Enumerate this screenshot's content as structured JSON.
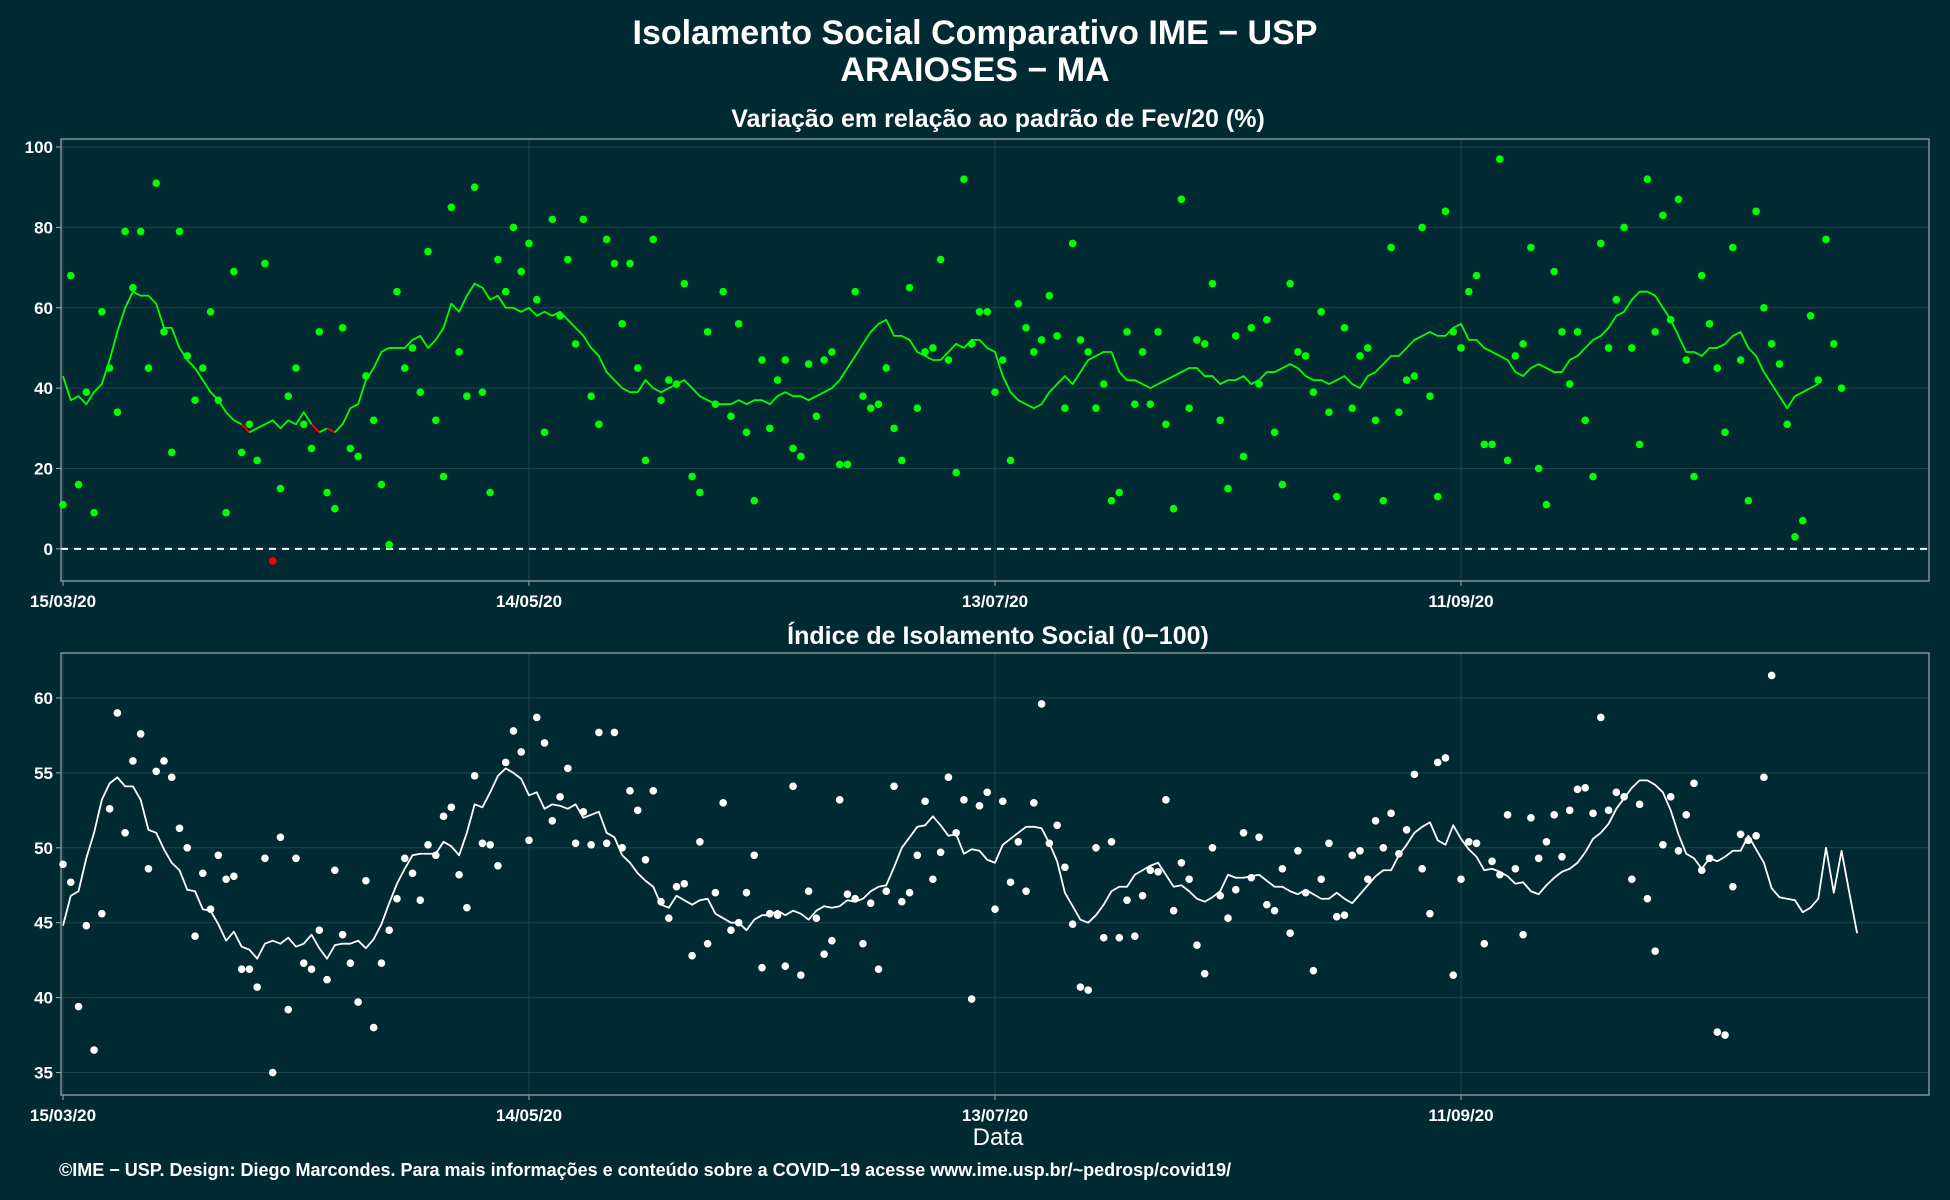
{
  "title_line1": "Isolamento Social Comparativo IME − USP",
  "title_line2": "ARAIOSES − MA",
  "caption": "©IME − USP. Design: Diego Marcondes. Para mais informações e conteúdo sobre a COVID−19 acesse www.ime.usp.br/~pedrosp/covid19/",
  "colors": {
    "background": "#022a33",
    "positive": "#00ff00",
    "negative": "#ff0000",
    "index": "#ffffff",
    "axis": "#a0aaaa",
    "grid": "#1c434b"
  },
  "chart_data": [
    {
      "type": "scatter",
      "title": "Variação em relação ao padrão de Fev/20 (%)",
      "xlabel": "",
      "ylabel": "",
      "x_start": "15/03/20",
      "n_days": 241,
      "x_ticks": [
        "15/03/20",
        "14/05/20",
        "13/07/20",
        "11/09/20"
      ],
      "x_tick_days": [
        0,
        60,
        120,
        180
      ],
      "ylim": [
        -8,
        102
      ],
      "y_ticks": [
        0,
        20,
        40,
        60,
        80,
        100
      ],
      "reference_line": 0,
      "grid": true,
      "series": [
        {
          "role": "daily points",
          "values": [
            11,
            68,
            16,
            39,
            9,
            59,
            45,
            34,
            79,
            65,
            79,
            45,
            91,
            54,
            24,
            79,
            48,
            37,
            45,
            59,
            37,
            9,
            69,
            24,
            31,
            22,
            71,
            -3,
            15,
            38,
            45,
            31,
            25,
            54,
            14,
            10,
            55,
            25,
            23,
            43,
            32,
            16,
            1,
            64,
            45,
            50,
            39,
            74,
            32,
            18,
            85,
            49,
            38,
            90,
            39,
            14,
            72,
            64,
            80,
            69,
            76,
            62,
            29,
            82,
            58,
            72,
            51,
            82,
            38,
            31,
            77,
            71,
            56,
            71,
            45,
            22,
            77,
            37,
            42,
            41,
            66,
            18,
            14,
            54,
            36,
            64,
            33,
            56,
            29,
            12,
            47,
            30,
            42,
            47,
            25,
            23,
            46,
            33,
            47,
            49,
            21,
            21,
            64,
            38,
            35,
            36,
            45,
            30,
            22,
            65,
            35,
            49,
            50,
            72,
            47,
            19,
            92,
            51,
            59,
            59,
            39,
            47,
            22,
            61,
            55,
            49,
            52,
            63,
            53,
            35,
            76,
            52,
            49,
            35,
            41,
            12,
            14,
            54,
            36,
            49,
            36,
            54,
            31,
            10,
            87,
            35,
            52,
            51,
            66,
            32,
            15,
            53,
            23,
            55,
            41,
            57,
            29,
            16,
            66,
            49,
            48,
            39,
            59,
            34,
            13,
            55,
            35,
            48,
            50,
            32,
            12,
            75,
            34,
            42,
            43,
            80,
            38,
            13,
            84,
            54,
            50,
            64,
            68,
            26,
            26,
            97,
            22,
            48,
            51,
            75,
            20,
            11,
            69,
            54,
            41,
            54,
            32,
            18,
            76,
            50,
            62,
            80,
            50,
            26,
            92,
            54,
            83,
            57,
            87,
            47,
            18,
            68,
            56,
            45,
            29,
            75,
            47,
            12,
            84,
            60,
            51,
            46,
            31,
            3,
            7,
            58,
            42,
            77,
            51,
            40
          ],
          "y_error_days": [
            27
          ]
        },
        {
          "role": "moving average",
          "values": [
            43,
            37,
            38,
            36,
            39,
            41,
            47,
            54,
            60,
            64,
            63,
            63,
            61,
            55,
            55,
            50,
            47,
            45,
            42,
            39,
            37,
            34,
            32,
            31,
            29,
            30,
            31,
            32,
            30,
            32,
            31,
            34,
            31,
            29,
            30,
            29,
            31,
            35,
            36,
            42,
            45,
            49,
            50,
            50,
            50,
            52,
            53,
            50,
            52,
            55,
            61,
            59,
            63,
            66,
            65,
            62,
            63,
            60,
            60,
            59,
            60,
            58,
            59,
            58,
            59,
            57,
            55,
            53,
            50,
            48,
            44,
            42,
            40,
            39,
            39,
            42,
            40,
            39,
            40,
            41,
            42,
            40,
            38,
            37,
            36,
            36,
            36,
            37,
            36,
            37,
            37,
            36,
            38,
            39,
            38,
            38,
            37,
            38,
            39,
            40,
            42,
            45,
            48,
            51,
            54,
            56,
            57,
            53,
            53,
            52,
            49,
            48,
            47,
            47,
            49,
            51,
            50,
            52,
            52,
            50,
            49,
            43,
            39,
            37,
            36,
            35,
            36,
            39,
            41,
            43,
            41,
            44,
            47,
            48,
            49,
            49,
            44,
            42,
            42,
            41,
            40,
            41,
            42,
            43,
            44,
            45,
            45,
            43,
            43,
            41,
            42,
            42,
            43,
            41,
            42,
            44,
            44,
            45,
            46,
            45,
            43,
            42,
            42,
            41,
            42,
            43,
            41,
            40,
            43,
            44,
            46,
            48,
            48,
            50,
            52,
            53,
            54,
            53,
            53,
            55,
            56,
            52,
            52,
            50,
            49,
            48,
            47,
            44,
            43,
            45,
            46,
            45,
            44,
            44,
            47,
            48,
            50,
            52,
            53,
            55,
            58,
            59,
            62,
            64,
            64,
            63,
            60,
            57,
            53,
            49,
            49,
            48,
            50,
            50,
            51,
            53,
            54,
            50,
            48,
            44,
            41,
            38,
            35,
            38,
            39,
            40,
            41
          ]
        }
      ]
    },
    {
      "type": "scatter",
      "title": "Índice de Isolamento Social (0−100)",
      "xlabel": "Data",
      "ylabel": "",
      "x_start": "15/03/20",
      "n_days": 241,
      "x_ticks": [
        "15/03/20",
        "14/05/20",
        "13/07/20",
        "11/09/20"
      ],
      "x_tick_days": [
        0,
        60,
        120,
        180
      ],
      "ylim": [
        33.5,
        63
      ],
      "y_ticks": [
        35,
        40,
        45,
        50,
        55,
        60
      ],
      "grid": true,
      "series": [
        {
          "role": "daily points",
          "values": [
            48.9,
            47.7,
            39.4,
            44.8,
            36.5,
            45.6,
            52.6,
            59.0,
            51.0,
            55.8,
            57.6,
            48.6,
            55.1,
            55.8,
            54.7,
            51.3,
            50.0,
            44.1,
            48.3,
            45.9,
            49.5,
            47.9,
            48.1,
            41.9,
            41.9,
            40.7,
            49.3,
            35.0,
            50.7,
            39.2,
            49.3,
            42.3,
            41.9,
            44.5,
            41.2,
            48.5,
            44.2,
            42.3,
            39.7,
            47.8,
            38.0,
            42.3,
            44.5,
            46.6,
            49.3,
            48.3,
            46.5,
            50.2,
            49.5,
            52.1,
            52.7,
            48.2,
            46.0,
            54.8,
            50.3,
            50.2,
            48.8,
            55.7,
            57.8,
            56.4,
            50.5,
            58.7,
            57.0,
            51.8,
            53.4,
            55.3,
            50.3,
            52.4,
            50.2,
            57.7,
            50.3,
            57.7,
            50.0,
            53.8,
            52.5,
            49.2,
            53.8,
            46.4,
            45.3,
            47.4,
            47.6,
            42.8,
            50.4,
            43.6,
            47.0,
            53.0,
            44.5,
            45.0,
            47.0,
            49.5,
            42.0,
            45.6,
            45.5,
            42.1,
            54.1,
            41.5,
            47.1,
            45.3,
            42.9,
            43.8,
            53.2,
            46.9,
            46.6,
            43.6,
            46.3,
            41.9,
            47.1,
            54.1,
            46.4,
            47.0,
            49.5,
            53.1,
            47.9,
            49.7,
            54.7,
            51.0,
            53.2,
            39.9,
            52.8,
            53.7,
            45.9,
            53.1,
            47.7,
            50.4,
            47.1,
            53.0,
            59.6,
            50.3,
            51.5,
            48.7,
            44.9,
            40.7,
            40.5,
            50.0,
            44.0,
            50.4,
            44.0,
            46.5,
            44.1,
            46.8,
            48.5,
            48.4,
            53.2,
            45.8,
            49.0,
            47.9,
            43.5,
            41.6,
            50.0,
            46.8,
            45.3,
            47.2,
            51.0,
            48.0,
            50.7,
            46.2,
            45.8,
            48.6,
            44.3,
            49.8,
            47.0,
            41.8,
            47.9,
            50.3,
            45.4,
            45.5,
            49.5,
            49.8,
            47.9,
            51.8,
            50.0,
            52.3,
            49.6,
            51.2,
            54.9,
            48.6,
            45.6,
            55.7,
            56.0,
            41.5,
            47.9,
            50.4,
            50.3,
            43.6,
            49.1,
            48.2,
            52.2,
            48.6,
            44.2,
            52.0,
            49.3,
            50.4,
            52.2,
            49.4,
            52.5,
            53.9,
            54.0,
            52.3,
            58.7,
            52.5,
            53.7,
            53.4,
            47.9,
            52.9,
            46.6,
            43.1,
            50.2,
            53.4,
            49.8,
            52.2,
            54.3,
            48.5,
            49.3,
            37.7,
            37.5,
            47.4,
            50.9,
            50.5,
            50.8,
            54.7,
            61.5
          ],
          "y_error_days": []
        },
        {
          "role": "moving average",
          "values": [
            44.8,
            46.8,
            47.1,
            49.3,
            51.0,
            53.2,
            54.3,
            54.7,
            54.1,
            54.1,
            53.2,
            51.2,
            51.0,
            49.9,
            49.0,
            48.5,
            47.2,
            47.1,
            45.9,
            45.8,
            44.9,
            43.8,
            44.4,
            43.4,
            43.2,
            42.6,
            43.6,
            43.8,
            43.6,
            44.0,
            43.4,
            43.6,
            44.2,
            43.3,
            42.6,
            43.5,
            43.6,
            43.6,
            43.8,
            43.3,
            43.9,
            44.9,
            46.3,
            47.6,
            48.6,
            49.5,
            49.6,
            49.6,
            49.6,
            50.4,
            50.1,
            49.5,
            51.0,
            52.9,
            52.7,
            53.7,
            54.8,
            55.3,
            55.0,
            54.6,
            53.5,
            53.7,
            52.6,
            52.9,
            52.8,
            52.6,
            52.9,
            52.0,
            52.2,
            52.4,
            51.0,
            50.7,
            49.5,
            49.0,
            48.3,
            47.8,
            47.4,
            46.2,
            46.0,
            46.8,
            46.5,
            46.2,
            46.5,
            46.6,
            45.6,
            45.3,
            45.0,
            45.0,
            44.5,
            45.2,
            45.5,
            45.5,
            45.8,
            45.5,
            45.8,
            45.6,
            45.2,
            45.8,
            46.1,
            46.0,
            46.1,
            46.5,
            46.4,
            46.6,
            47.1,
            47.4,
            47.5,
            48.7,
            50.0,
            50.7,
            51.4,
            51.5,
            52.1,
            51.5,
            50.8,
            50.9,
            49.6,
            49.9,
            49.8,
            49.2,
            49.0,
            50.2,
            50.6,
            51.0,
            51.4,
            51.4,
            51.3,
            50.3,
            49.1,
            47.0,
            46.1,
            45.2,
            45.0,
            45.5,
            46.2,
            47.1,
            47.4,
            47.4,
            48.2,
            48.5,
            48.8,
            49.0,
            48.2,
            47.4,
            47.5,
            47.1,
            46.6,
            46.4,
            46.7,
            47.1,
            48.2,
            48.0,
            48.0,
            48.1,
            48.2,
            47.8,
            47.4,
            47.4,
            47.1,
            46.9,
            47.2,
            46.9,
            46.6,
            46.6,
            47.0,
            46.6,
            46.3,
            46.9,
            47.5,
            48.1,
            48.5,
            48.5,
            49.5,
            50.2,
            51.0,
            51.4,
            51.7,
            50.5,
            50.2,
            51.5,
            50.6,
            49.9,
            49.4,
            48.5,
            48.6,
            48.4,
            48.1,
            47.6,
            47.7,
            47.1,
            46.9,
            47.5,
            48.0,
            48.4,
            48.6,
            49.0,
            49.7,
            50.6,
            51.0,
            51.6,
            52.6,
            53.3,
            54.0,
            54.5,
            54.5,
            54.2,
            53.7,
            52.5,
            50.9,
            49.6,
            49.3,
            48.6,
            49.3,
            49.1,
            49.4,
            49.8,
            49.8,
            50.8,
            49.9,
            49.0,
            47.3,
            46.7,
            46.6,
            46.5,
            45.7,
            46.0,
            46.6,
            50.0,
            47.0,
            49.8,
            47.0,
            44.3
          ],
          "segment_break_days": [
            236
          ]
        }
      ]
    }
  ]
}
